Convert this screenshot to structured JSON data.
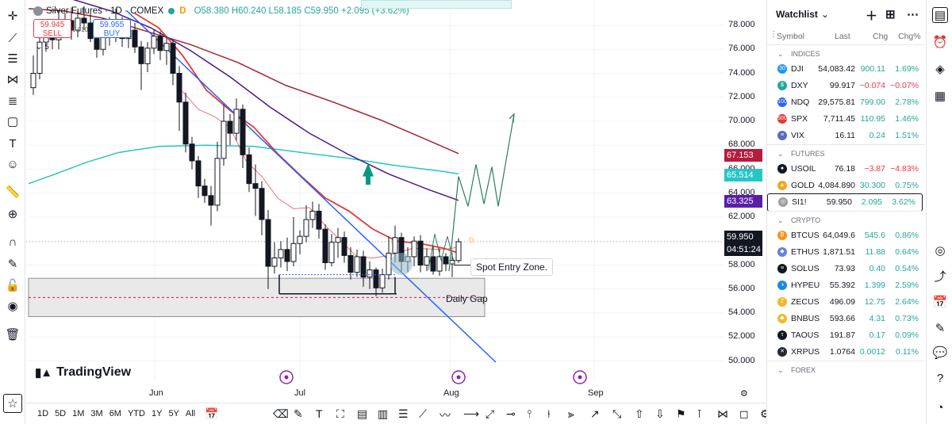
{
  "symbol": {
    "title": "Silver Futures · 1D · COMEX",
    "interval_marker": "D",
    "ohlc": "O58.380 H60.240 L58.185 C59.950 +2.095 (+3.62%)"
  },
  "trade": {
    "sell_price": "59.945",
    "sell_label": "SELL",
    "buy_price": "59.955",
    "buy_label": "BUY",
    "spread": "0.010",
    "lots": "5"
  },
  "price_axis": {
    "ticks": [
      "78.000",
      "76.000",
      "74.000",
      "72.000",
      "70.000",
      "68.000",
      "66.000",
      "64.000",
      "62.000",
      "60.000",
      "58.000",
      "56.000",
      "54.000",
      "52.000",
      "50.000"
    ],
    "badges": [
      {
        "value": "67.153",
        "color": "#b71c3c"
      },
      {
        "value": "65.514",
        "color": "#26c6c6"
      },
      {
        "value": "63.325",
        "color": "#5b1fa6"
      },
      {
        "value": "59.950",
        "color": "#131722"
      },
      {
        "value": "04:51:24",
        "color": "#131722"
      }
    ]
  },
  "time_axis": [
    "Jun",
    "Jul",
    "Aug",
    "Sep"
  ],
  "annotations": {
    "spot_entry": "Spot Entry Zone.",
    "daily_gap": "Daily Gap"
  },
  "branding": {
    "name": "TradingView"
  },
  "ranges": [
    "1D",
    "5D",
    "1M",
    "3M",
    "6M",
    "YTD",
    "1Y",
    "5Y",
    "All"
  ],
  "watchlist": {
    "title": "Watchlist",
    "columns": [
      "Symbol",
      "Last",
      "Chg",
      "Chg%"
    ],
    "sections": [
      {
        "name": "INDICES",
        "rows": [
          {
            "symbol": "DJI",
            "last": "54,083.42",
            "chg": "900.11",
            "chgp": "1.69%",
            "dir": "pos",
            "icon_color": "#2196f3",
            "icon": "30"
          },
          {
            "symbol": "DXY",
            "last": "99.917",
            "chg": "−0.074",
            "chgp": "−0.07%",
            "dir": "neg",
            "icon_color": "#26a69a",
            "icon": "$"
          },
          {
            "symbol": "NDQ",
            "last": "29,575.81",
            "chg": "799.00",
            "chgp": "2.78%",
            "dir": "pos",
            "icon_color": "#2962ff",
            "icon": "100"
          },
          {
            "symbol": "SPX",
            "last": "7,711.45",
            "chg": "110.95",
            "chgp": "1.46%",
            "dir": "pos",
            "icon_color": "#e53935",
            "icon": "500"
          },
          {
            "symbol": "VIX",
            "last": "16.11",
            "chg": "0.24",
            "chgp": "1.51%",
            "dir": "pos",
            "icon_color": "#5c6bc0",
            "icon": "≡"
          }
        ]
      },
      {
        "name": "FUTURES",
        "rows": [
          {
            "symbol": "USOIL",
            "last": "76.18",
            "chg": "−3.87",
            "chgp": "−4.83%",
            "dir": "neg",
            "icon_color": "#131722",
            "icon": "●"
          },
          {
            "symbol": "GOLD",
            "last": "4,084.890",
            "chg": "30.300",
            "chgp": "0.75%",
            "dir": "pos",
            "icon_color": "#f5a623",
            "icon": "▲"
          },
          {
            "symbol": "SI1!",
            "last": "59.950",
            "chg": "2.095",
            "chgp": "3.62%",
            "dir": "pos",
            "icon_color": "#9e9e9e",
            "icon": "◎",
            "active": true
          }
        ]
      },
      {
        "name": "CRYPTO",
        "rows": [
          {
            "symbol": "BTCUS",
            "last": "64,049.6",
            "chg": "545.6",
            "chgp": "0.86%",
            "dir": "pos",
            "icon_color": "#f7931a",
            "icon": "₿"
          },
          {
            "symbol": "ETHUS",
            "last": "1,871.51",
            "chg": "11.88",
            "chgp": "0.64%",
            "dir": "pos",
            "icon_color": "#627eea",
            "icon": "◆"
          },
          {
            "symbol": "SOLUS",
            "last": "73.93",
            "chg": "0.40",
            "chgp": "0.54%",
            "dir": "pos",
            "icon_color": "#131722",
            "icon": "≡"
          },
          {
            "symbol": "HYPEU",
            "last": "55.392",
            "chg": "1.399",
            "chgp": "2.59%",
            "dir": "pos",
            "icon_color": "#1e88e5",
            "icon": "◑"
          },
          {
            "symbol": "ZECUS",
            "last": "496.09",
            "chg": "12.75",
            "chgp": "2.64%",
            "dir": "pos",
            "icon_color": "#f4b728",
            "icon": "Z"
          },
          {
            "symbol": "BNBUS",
            "last": "593.66",
            "chg": "4.31",
            "chgp": "0.73%",
            "dir": "pos",
            "icon_color": "#f3ba2f",
            "icon": "◆"
          },
          {
            "symbol": "TAOUS",
            "last": "191.87",
            "chg": "0.17",
            "chgp": "0.09%",
            "dir": "pos",
            "icon_color": "#131722",
            "icon": "τ"
          },
          {
            "symbol": "XRPUS",
            "last": "1.0764",
            "chg": "0.0012",
            "chgp": "0.11%",
            "dir": "pos",
            "icon_color": "#23292f",
            "icon": "✕"
          }
        ]
      },
      {
        "name": "FOREX",
        "rows": []
      }
    ]
  },
  "colors": {
    "up": "#26a69a",
    "down": "#f23645",
    "ema_red": "#e53935",
    "ema_purple": "#4a1a8c",
    "ema_darkred": "#a3242f",
    "ma_teal": "#26c6c6",
    "trend_blue": "#2962ff",
    "projection": "#2e7d5b"
  }
}
